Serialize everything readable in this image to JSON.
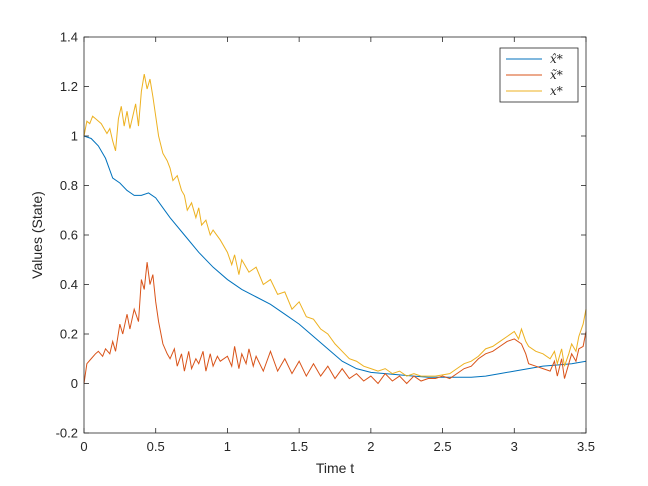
{
  "chart_data": {
    "type": "line",
    "title": "",
    "xlabel": "Time t",
    "ylabel": "Values (State)",
    "xlim": [
      0,
      3.5
    ],
    "ylim": [
      -0.2,
      1.4
    ],
    "xticks": [
      0,
      0.5,
      1,
      1.5,
      2,
      2.5,
      3,
      3.5
    ],
    "xtick_labels": [
      "0",
      "0.5",
      "1",
      "1.5",
      "2",
      "2.5",
      "3",
      "3.5"
    ],
    "yticks": [
      -0.2,
      0,
      0.2,
      0.4,
      0.6,
      0.8,
      1,
      1.2,
      1.4
    ],
    "ytick_labels": [
      "-0.2",
      "0",
      "0.2",
      "0.4",
      "0.6",
      "0.8",
      "1",
      "1.2",
      "1.4"
    ],
    "grid": false,
    "legend_position": "top-right",
    "series": [
      {
        "name": "x̂*",
        "color": "#0072BD",
        "points": [
          [
            0,
            1.0
          ],
          [
            0.05,
            0.99
          ],
          [
            0.1,
            0.96
          ],
          [
            0.15,
            0.91
          ],
          [
            0.2,
            0.83
          ],
          [
            0.25,
            0.81
          ],
          [
            0.3,
            0.78
          ],
          [
            0.35,
            0.76
          ],
          [
            0.4,
            0.76
          ],
          [
            0.45,
            0.77
          ],
          [
            0.5,
            0.75
          ],
          [
            0.55,
            0.71
          ],
          [
            0.6,
            0.67
          ],
          [
            0.7,
            0.6
          ],
          [
            0.8,
            0.53
          ],
          [
            0.9,
            0.47
          ],
          [
            1.0,
            0.42
          ],
          [
            1.1,
            0.38
          ],
          [
            1.2,
            0.35
          ],
          [
            1.3,
            0.32
          ],
          [
            1.4,
            0.28
          ],
          [
            1.5,
            0.24
          ],
          [
            1.6,
            0.19
          ],
          [
            1.7,
            0.14
          ],
          [
            1.8,
            0.09
          ],
          [
            1.9,
            0.06
          ],
          [
            2.0,
            0.045
          ],
          [
            2.1,
            0.04
          ],
          [
            2.2,
            0.035
          ],
          [
            2.3,
            0.03
          ],
          [
            2.4,
            0.025
          ],
          [
            2.5,
            0.025
          ],
          [
            2.6,
            0.025
          ],
          [
            2.7,
            0.025
          ],
          [
            2.8,
            0.03
          ],
          [
            2.9,
            0.04
          ],
          [
            3.0,
            0.05
          ],
          [
            3.1,
            0.06
          ],
          [
            3.2,
            0.07
          ],
          [
            3.3,
            0.075
          ],
          [
            3.4,
            0.08
          ],
          [
            3.5,
            0.09
          ]
        ]
      },
      {
        "name": "x̃*",
        "color": "#D95319",
        "points": [
          [
            0,
            0.0
          ],
          [
            0.02,
            0.08
          ],
          [
            0.05,
            0.1
          ],
          [
            0.08,
            0.12
          ],
          [
            0.1,
            0.13
          ],
          [
            0.13,
            0.11
          ],
          [
            0.15,
            0.14
          ],
          [
            0.18,
            0.12
          ],
          [
            0.2,
            0.17
          ],
          [
            0.22,
            0.13
          ],
          [
            0.25,
            0.24
          ],
          [
            0.27,
            0.2
          ],
          [
            0.3,
            0.28
          ],
          [
            0.32,
            0.22
          ],
          [
            0.35,
            0.3
          ],
          [
            0.38,
            0.25
          ],
          [
            0.4,
            0.42
          ],
          [
            0.42,
            0.38
          ],
          [
            0.44,
            0.49
          ],
          [
            0.46,
            0.4
          ],
          [
            0.48,
            0.44
          ],
          [
            0.5,
            0.33
          ],
          [
            0.52,
            0.25
          ],
          [
            0.55,
            0.16
          ],
          [
            0.58,
            0.12
          ],
          [
            0.6,
            0.1
          ],
          [
            0.63,
            0.14
          ],
          [
            0.65,
            0.07
          ],
          [
            0.68,
            0.12
          ],
          [
            0.7,
            0.05
          ],
          [
            0.73,
            0.13
          ],
          [
            0.75,
            0.06
          ],
          [
            0.78,
            0.1
          ],
          [
            0.8,
            0.08
          ],
          [
            0.83,
            0.13
          ],
          [
            0.85,
            0.05
          ],
          [
            0.88,
            0.12
          ],
          [
            0.9,
            0.07
          ],
          [
            0.93,
            0.11
          ],
          [
            0.95,
            0.09
          ],
          [
            1.0,
            0.11
          ],
          [
            1.03,
            0.07
          ],
          [
            1.05,
            0.15
          ],
          [
            1.08,
            0.06
          ],
          [
            1.1,
            0.12
          ],
          [
            1.13,
            0.08
          ],
          [
            1.15,
            0.14
          ],
          [
            1.18,
            0.07
          ],
          [
            1.2,
            0.11
          ],
          [
            1.25,
            0.05
          ],
          [
            1.3,
            0.13
          ],
          [
            1.35,
            0.05
          ],
          [
            1.4,
            0.1
          ],
          [
            1.45,
            0.04
          ],
          [
            1.5,
            0.09
          ],
          [
            1.55,
            0.03
          ],
          [
            1.6,
            0.08
          ],
          [
            1.65,
            0.03
          ],
          [
            1.7,
            0.07
          ],
          [
            1.75,
            0.02
          ],
          [
            1.8,
            0.06
          ],
          [
            1.85,
            0.02
          ],
          [
            1.9,
            0.04
          ],
          [
            1.95,
            0.01
          ],
          [
            2.0,
            0.03
          ],
          [
            2.05,
            0.0
          ],
          [
            2.1,
            0.04
          ],
          [
            2.15,
            0.01
          ],
          [
            2.2,
            0.03
          ],
          [
            2.25,
            0.0
          ],
          [
            2.3,
            0.03
          ],
          [
            2.35,
            0.01
          ],
          [
            2.4,
            0.02
          ],
          [
            2.45,
            0.02
          ],
          [
            2.5,
            0.03
          ],
          [
            2.55,
            0.02
          ],
          [
            2.6,
            0.04
          ],
          [
            2.65,
            0.06
          ],
          [
            2.7,
            0.07
          ],
          [
            2.75,
            0.1
          ],
          [
            2.8,
            0.12
          ],
          [
            2.85,
            0.13
          ],
          [
            2.9,
            0.15
          ],
          [
            2.95,
            0.17
          ],
          [
            3.0,
            0.18
          ],
          [
            3.05,
            0.16
          ],
          [
            3.08,
            0.12
          ],
          [
            3.1,
            0.08
          ],
          [
            3.15,
            0.07
          ],
          [
            3.2,
            0.06
          ],
          [
            3.25,
            0.05
          ],
          [
            3.28,
            0.09
          ],
          [
            3.3,
            0.03
          ],
          [
            3.33,
            0.1
          ],
          [
            3.35,
            0.02
          ],
          [
            3.38,
            0.08
          ],
          [
            3.4,
            0.12
          ],
          [
            3.43,
            0.09
          ],
          [
            3.45,
            0.14
          ],
          [
            3.48,
            0.15
          ],
          [
            3.5,
            0.21
          ]
        ]
      },
      {
        "name": "x*",
        "color": "#EDB120",
        "points": [
          [
            0,
            1.0
          ],
          [
            0.02,
            1.06
          ],
          [
            0.04,
            1.05
          ],
          [
            0.06,
            1.08
          ],
          [
            0.08,
            1.07
          ],
          [
            0.1,
            1.06
          ],
          [
            0.12,
            1.05
          ],
          [
            0.14,
            1.03
          ],
          [
            0.16,
            1.01
          ],
          [
            0.18,
            1.03
          ],
          [
            0.2,
            0.98
          ],
          [
            0.22,
            0.94
          ],
          [
            0.24,
            1.07
          ],
          [
            0.26,
            1.12
          ],
          [
            0.28,
            1.04
          ],
          [
            0.3,
            1.1
          ],
          [
            0.32,
            1.03
          ],
          [
            0.34,
            1.08
          ],
          [
            0.36,
            1.13
          ],
          [
            0.38,
            1.04
          ],
          [
            0.4,
            1.18
          ],
          [
            0.42,
            1.25
          ],
          [
            0.44,
            1.19
          ],
          [
            0.46,
            1.23
          ],
          [
            0.48,
            1.16
          ],
          [
            0.5,
            1.08
          ],
          [
            0.52,
            1.0
          ],
          [
            0.55,
            0.93
          ],
          [
            0.58,
            0.9
          ],
          [
            0.6,
            0.87
          ],
          [
            0.62,
            0.82
          ],
          [
            0.65,
            0.84
          ],
          [
            0.68,
            0.78
          ],
          [
            0.7,
            0.76
          ],
          [
            0.72,
            0.7
          ],
          [
            0.75,
            0.73
          ],
          [
            0.78,
            0.67
          ],
          [
            0.8,
            0.71
          ],
          [
            0.82,
            0.64
          ],
          [
            0.85,
            0.66
          ],
          [
            0.88,
            0.6
          ],
          [
            0.9,
            0.62
          ],
          [
            0.95,
            0.58
          ],
          [
            1.0,
            0.53
          ],
          [
            1.03,
            0.48
          ],
          [
            1.05,
            0.52
          ],
          [
            1.08,
            0.44
          ],
          [
            1.1,
            0.5
          ],
          [
            1.15,
            0.45
          ],
          [
            1.2,
            0.47
          ],
          [
            1.25,
            0.4
          ],
          [
            1.3,
            0.42
          ],
          [
            1.35,
            0.36
          ],
          [
            1.4,
            0.37
          ],
          [
            1.45,
            0.3
          ],
          [
            1.5,
            0.33
          ],
          [
            1.55,
            0.27
          ],
          [
            1.6,
            0.26
          ],
          [
            1.65,
            0.22
          ],
          [
            1.7,
            0.2
          ],
          [
            1.75,
            0.16
          ],
          [
            1.8,
            0.13
          ],
          [
            1.85,
            0.1
          ],
          [
            1.9,
            0.09
          ],
          [
            1.95,
            0.07
          ],
          [
            2.0,
            0.06
          ],
          [
            2.05,
            0.05
          ],
          [
            2.1,
            0.06
          ],
          [
            2.15,
            0.04
          ],
          [
            2.2,
            0.05
          ],
          [
            2.25,
            0.03
          ],
          [
            2.3,
            0.04
          ],
          [
            2.35,
            0.03
          ],
          [
            2.4,
            0.03
          ],
          [
            2.45,
            0.03
          ],
          [
            2.5,
            0.035
          ],
          [
            2.55,
            0.04
          ],
          [
            2.6,
            0.06
          ],
          [
            2.65,
            0.08
          ],
          [
            2.7,
            0.09
          ],
          [
            2.75,
            0.11
          ],
          [
            2.8,
            0.14
          ],
          [
            2.85,
            0.15
          ],
          [
            2.9,
            0.17
          ],
          [
            2.95,
            0.19
          ],
          [
            3.0,
            0.21
          ],
          [
            3.03,
            0.18
          ],
          [
            3.05,
            0.22
          ],
          [
            3.08,
            0.17
          ],
          [
            3.1,
            0.15
          ],
          [
            3.15,
            0.13
          ],
          [
            3.2,
            0.12
          ],
          [
            3.25,
            0.1
          ],
          [
            3.28,
            0.13
          ],
          [
            3.3,
            0.08
          ],
          [
            3.33,
            0.14
          ],
          [
            3.35,
            0.07
          ],
          [
            3.38,
            0.12
          ],
          [
            3.4,
            0.16
          ],
          [
            3.43,
            0.13
          ],
          [
            3.45,
            0.19
          ],
          [
            3.48,
            0.24
          ],
          [
            3.5,
            0.3
          ]
        ]
      }
    ]
  }
}
